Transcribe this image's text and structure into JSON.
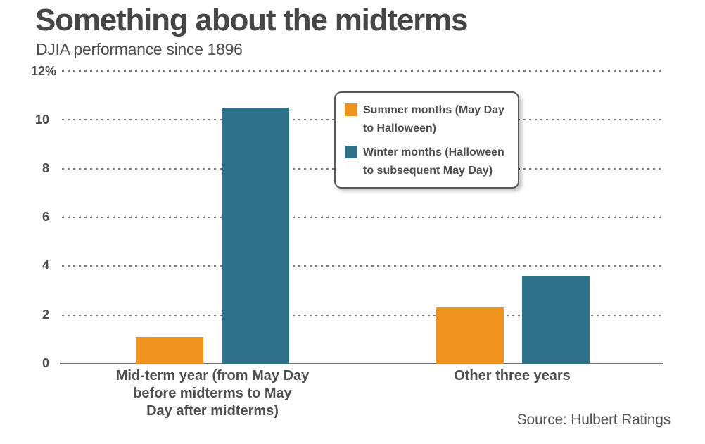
{
  "header": {
    "title": "Something about the midterms",
    "subtitle": "DJIA performance since 1896"
  },
  "source_credit": "Source: Hulbert Ratings",
  "colors": {
    "summer_orange": "#F0921E",
    "winter_teal": "#2E7189",
    "title_text": "#464646",
    "body_text": "#4D4D4D",
    "gridline": "#787878",
    "axis_line": "#6E6E6E",
    "legend_border": "#58585A",
    "background": "#FFFFFF"
  },
  "legend": {
    "items": [
      {
        "label": "Summer months (May Day to Halloween)",
        "lines": [
          "Summer months (May Day",
          "to Halloween)"
        ],
        "color": "#F0921E"
      },
      {
        "label": "Winter months (Halloween to subsequent May Day)",
        "lines": [
          "Winter months (Halloween",
          "to subsequent May Day)"
        ],
        "color": "#2E7189"
      }
    ]
  },
  "category_labels": [
    {
      "full": "Mid-term year (from May Day before midterms to May Day after midterms)",
      "lines": [
        "Mid-term year (from May Day",
        "before midterms to May",
        "Day after midterms)"
      ]
    },
    {
      "full": "Other three years",
      "lines": [
        "Other three years"
      ]
    }
  ],
  "chart_data": {
    "type": "bar",
    "title": "Something about the midterms",
    "subtitle": "DJIA performance since 1896",
    "categories": [
      "Mid-term year (from May Day before midterms to May Day after midterms)",
      "Other three years"
    ],
    "series": [
      {
        "name": "Summer months (May Day to Halloween)",
        "color": "#F0921E",
        "values": [
          1.1,
          2.3
        ]
      },
      {
        "name": "Winter months (Halloween to subsequent May Day)",
        "color": "#2E7189",
        "values": [
          10.5,
          3.6
        ]
      }
    ],
    "xlabel": "",
    "ylabel": "%",
    "ylim": [
      0,
      12
    ],
    "yticks": [
      "12%",
      "10",
      "8",
      "6",
      "4",
      "2",
      "0"
    ],
    "grid": "horizontal dotted, solid zero baseline",
    "legend_position": "inside top-center",
    "source": "Source: Hulbert Ratings"
  }
}
